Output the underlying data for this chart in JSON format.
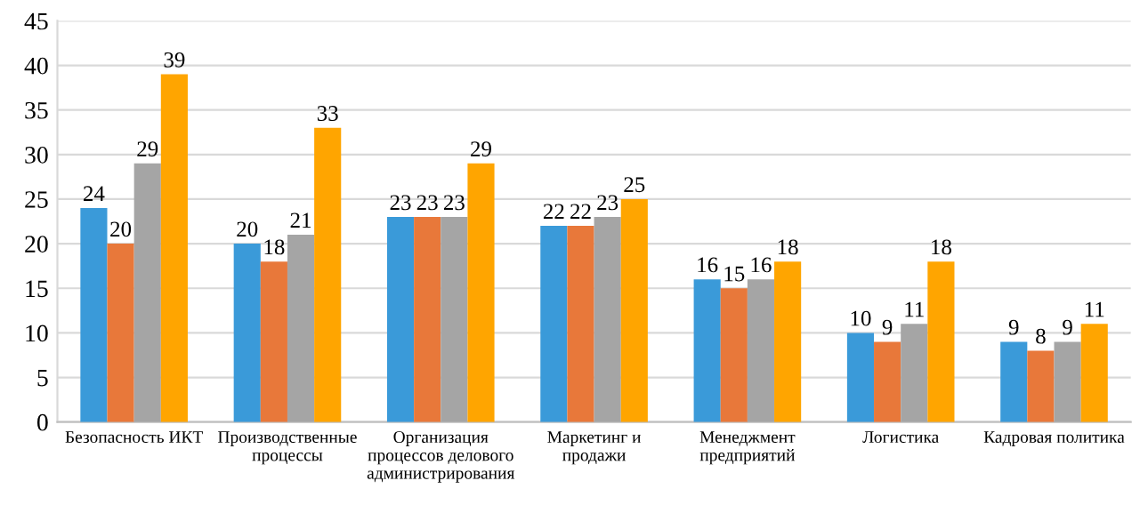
{
  "chart_data": {
    "type": "bar",
    "categories": [
      "Безопасность ИКТ",
      "Производственные\nпроцессы",
      "Организация\nпроцессов делового\nадминистрирования",
      "Маркетинг и\nпродажи",
      "Менеджмент\nпредприятий",
      "Логистика",
      "Кадровая политика"
    ],
    "series": [
      {
        "color": "#3a9ad9",
        "values": [
          24,
          20,
          23,
          22,
          16,
          10,
          9
        ]
      },
      {
        "color": "#e8783a",
        "values": [
          20,
          18,
          23,
          22,
          15,
          9,
          8
        ]
      },
      {
        "color": "#a5a5a5",
        "values": [
          29,
          21,
          23,
          23,
          16,
          11,
          9
        ]
      },
      {
        "color": "#ffa500",
        "values": [
          39,
          33,
          29,
          25,
          18,
          18,
          11
        ]
      }
    ],
    "ylim": [
      0,
      45
    ],
    "yticks": [
      0,
      5,
      10,
      15,
      20,
      25,
      30,
      35,
      40,
      45
    ],
    "grid": "y",
    "data_labels": true
  }
}
